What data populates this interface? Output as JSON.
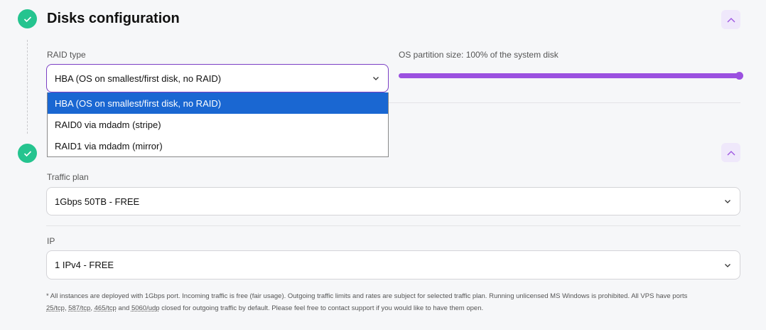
{
  "sections": [
    {
      "title": "Disks configuration",
      "status": "complete"
    },
    {
      "status": "complete"
    }
  ],
  "disks": {
    "raid_label": "RAID type",
    "raid_value": "HBA (OS on smallest/first disk, no RAID)",
    "raid_options": [
      "HBA (OS on smallest/first disk, no RAID)",
      "RAID0 via mdadm (stripe)",
      "RAID1 via mdadm (mirror)"
    ],
    "partition_label": "OS partition size: 100% of the system disk",
    "partition_percent": 100
  },
  "network": {
    "traffic_label": "Traffic plan",
    "traffic_value": "1Gbps 50TB - FREE",
    "ip_label": "IP",
    "ip_value": "1 IPv4 - FREE"
  },
  "footnote": {
    "line1": "* All instances are deployed with 1Gbps port. Incoming traffic is free (fair usage). Outgoing traffic limits and rates are subject for selected traffic plan. Running unlicensed MS Windows is prohibited. All VPS have ports",
    "ports": [
      "25/tcp",
      "587/tcp",
      "465/tcp",
      "5060/udp"
    ],
    "sep1": ", ",
    "sep2": ", ",
    "sep3": " and ",
    "tail": " closed for outgoing traffic by default. Please feel free to contact support if you would like to have them open."
  },
  "colors": {
    "accent": "#9b51e0",
    "success": "#25c48f",
    "selected": "#1a67d2"
  }
}
